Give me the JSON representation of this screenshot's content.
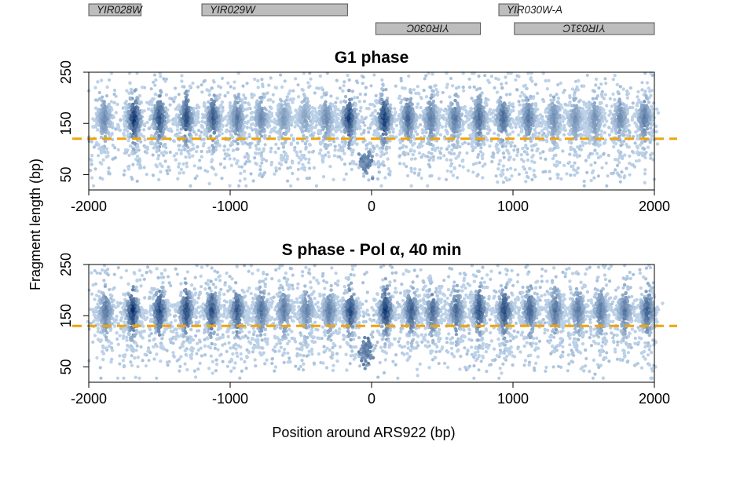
{
  "colors": {
    "density_low": "#c6dbef",
    "density_high": "#08306b",
    "cutoff_line": "#f0a30a",
    "gene_box": "#bdbdbd"
  },
  "genes": [
    {
      "label": "YIR028W",
      "start": -2000,
      "end": -1630,
      "strand": "+"
    },
    {
      "label": "YIR029W",
      "start": -1200,
      "end": -170,
      "strand": "+"
    },
    {
      "label": "YIR030W-A",
      "start": 900,
      "end": 1040,
      "strand": "+"
    },
    {
      "label": "YIR030C",
      "start": 30,
      "end": 770,
      "strand": "-"
    },
    {
      "label": "YIR031C",
      "start": 1010,
      "end": 2000,
      "strand": "-"
    }
  ],
  "shared": {
    "ylabel": "Fragment length (bp)",
    "xlabel": "Position around ARS922 (bp)"
  },
  "chart_data": [
    {
      "type": "scatter",
      "title": "G1 phase",
      "xlim": [
        -2000,
        2000
      ],
      "ylim": [
        20,
        250
      ],
      "xticks": [
        -2000,
        -1000,
        0,
        1000,
        2000
      ],
      "yticks": [
        50,
        150,
        250
      ],
      "cutoff_y": 120,
      "nucleosome_centers": [
        -1890,
        -1680,
        -1500,
        -1310,
        -1120,
        -950,
        -780,
        -620,
        -470,
        -320,
        -160,
        90,
        260,
        420,
        590,
        760,
        930,
        1110,
        1290,
        1440,
        1580,
        1760,
        1930
      ],
      "nucleosome_occupancy": [
        0.5,
        1.0,
        0.85,
        0.85,
        0.8,
        0.6,
        0.5,
        0.4,
        0.35,
        0.5,
        0.95,
        1.0,
        0.7,
        0.6,
        0.6,
        0.7,
        0.7,
        0.6,
        0.5,
        0.45,
        0.45,
        0.5,
        0.6
      ],
      "nfr_center": -40,
      "nfr_fragment_length": 70
    },
    {
      "type": "scatter",
      "title": "S phase - Pol α, 40 min",
      "xlim": [
        -2000,
        2000
      ],
      "ylim": [
        20,
        250
      ],
      "xticks": [
        -2000,
        -1000,
        0,
        1000,
        2000
      ],
      "yticks": [
        50,
        150,
        250
      ],
      "cutoff_y": 130,
      "nucleosome_centers": [
        -1880,
        -1690,
        -1500,
        -1310,
        -1130,
        -950,
        -780,
        -620,
        -460,
        -300,
        -150,
        100,
        280,
        430,
        600,
        760,
        940,
        1120,
        1300,
        1460,
        1620,
        1790,
        1950
      ],
      "nucleosome_occupancy": [
        0.6,
        1.0,
        0.9,
        0.9,
        0.85,
        0.8,
        0.65,
        0.6,
        0.55,
        0.6,
        0.9,
        1.0,
        0.8,
        0.7,
        0.7,
        0.85,
        0.9,
        0.75,
        0.65,
        0.6,
        0.6,
        0.6,
        0.75
      ],
      "nfr_center": -40,
      "nfr_fragment_length": 80
    }
  ]
}
